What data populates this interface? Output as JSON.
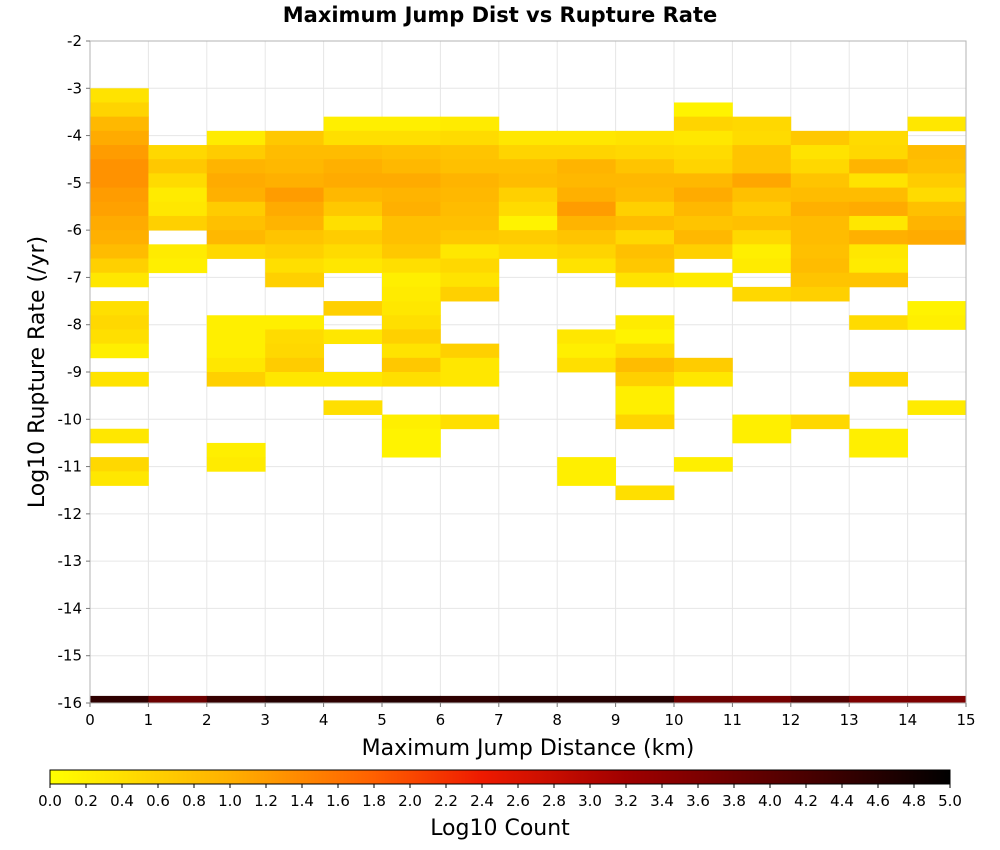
{
  "chart_data": {
    "type": "heatmap",
    "title": "Maximum Jump Dist vs Rupture Rate",
    "xlabel": "Maximum Jump Distance (km)",
    "ylabel": "Log10 Rupture Rate (/yr)",
    "xlim": [
      0,
      15
    ],
    "ylim": [
      -16,
      -2
    ],
    "x_ticks": [
      "0",
      "1",
      "2",
      "3",
      "4",
      "5",
      "6",
      "7",
      "8",
      "9",
      "10",
      "11",
      "12",
      "13",
      "14",
      "15"
    ],
    "y_ticks": [
      "-2",
      "-3",
      "-4",
      "-5",
      "-6",
      "-7",
      "-8",
      "-9",
      "-10",
      "-11",
      "-12",
      "-13",
      "-14",
      "-15",
      "-16"
    ],
    "grid": true,
    "x_bin_width": 1,
    "y_bin_height": 0.3,
    "colorbar": {
      "label": "Log10 Count",
      "min": 0.0,
      "max": 5.0,
      "ticks": [
        "0.0",
        "0.2",
        "0.4",
        "0.6",
        "0.8",
        "1.0",
        "1.2",
        "1.4",
        "1.6",
        "1.8",
        "2.0",
        "2.2",
        "2.4",
        "2.6",
        "2.8",
        "3.0",
        "3.2",
        "3.4",
        "3.6",
        "3.8",
        "4.0",
        "4.2",
        "4.4",
        "4.6",
        "4.8",
        "5.0"
      ],
      "stops": [
        {
          "v": 0.0,
          "color": "#ffff00"
        },
        {
          "v": 1.0,
          "color": "#ffb000"
        },
        {
          "v": 1.8,
          "color": "#ff6000"
        },
        {
          "v": 2.4,
          "color": "#ee1a00"
        },
        {
          "v": 3.2,
          "color": "#a00000"
        },
        {
          "v": 4.2,
          "color": "#4a0000"
        },
        {
          "v": 5.0,
          "color": "#000000"
        }
      ]
    },
    "cells": [
      [
        0,
        -3.0,
        0.35
      ],
      [
        0,
        -3.3,
        0.55
      ],
      [
        0,
        -3.6,
        0.9
      ],
      [
        0,
        -3.9,
        1.05
      ],
      [
        0,
        -4.2,
        1.2
      ],
      [
        0,
        -4.5,
        1.3
      ],
      [
        0,
        -4.8,
        1.3
      ],
      [
        0,
        -5.1,
        1.2
      ],
      [
        0,
        -5.4,
        1.15
      ],
      [
        0,
        -5.7,
        1.05
      ],
      [
        0,
        -6.0,
        1.0
      ],
      [
        0,
        -6.3,
        0.85
      ],
      [
        0,
        -6.6,
        0.6
      ],
      [
        0,
        -6.9,
        0.3
      ],
      [
        0,
        -7.5,
        0.4
      ],
      [
        0,
        -7.8,
        0.5
      ],
      [
        0,
        -8.1,
        0.4
      ],
      [
        0,
        -8.4,
        0.2
      ],
      [
        0,
        -9.0,
        0.35
      ],
      [
        0,
        -10.2,
        0.3
      ],
      [
        0,
        -10.8,
        0.5
      ],
      [
        0,
        -11.1,
        0.3
      ],
      [
        1,
        -4.2,
        0.5
      ],
      [
        1,
        -4.5,
        0.7
      ],
      [
        1,
        -4.8,
        0.45
      ],
      [
        1,
        -5.1,
        0.25
      ],
      [
        1,
        -5.4,
        0.3
      ],
      [
        1,
        -5.7,
        0.6
      ],
      [
        1,
        -6.3,
        0.25
      ],
      [
        1,
        -6.6,
        0.2
      ],
      [
        2,
        -3.9,
        0.25
      ],
      [
        2,
        -4.2,
        0.65
      ],
      [
        2,
        -4.5,
        0.95
      ],
      [
        2,
        -4.8,
        1.05
      ],
      [
        2,
        -5.1,
        1.0
      ],
      [
        2,
        -5.4,
        0.65
      ],
      [
        2,
        -5.7,
        0.8
      ],
      [
        2,
        -6.0,
        0.9
      ],
      [
        2,
        -6.3,
        0.5
      ],
      [
        2,
        -7.8,
        0.2
      ],
      [
        2,
        -8.1,
        0.2
      ],
      [
        2,
        -8.4,
        0.2
      ],
      [
        2,
        -8.7,
        0.3
      ],
      [
        2,
        -9.0,
        0.6
      ],
      [
        2,
        -10.5,
        0.2
      ],
      [
        2,
        -10.8,
        0.25
      ],
      [
        3,
        -3.9,
        0.7
      ],
      [
        3,
        -4.2,
        0.85
      ],
      [
        3,
        -4.5,
        0.9
      ],
      [
        3,
        -4.8,
        1.0
      ],
      [
        3,
        -5.1,
        1.2
      ],
      [
        3,
        -5.4,
        1.05
      ],
      [
        3,
        -5.7,
        0.95
      ],
      [
        3,
        -6.0,
        0.75
      ],
      [
        3,
        -6.3,
        0.6
      ],
      [
        3,
        -6.6,
        0.4
      ],
      [
        3,
        -6.9,
        0.6
      ],
      [
        3,
        -7.8,
        0.2
      ],
      [
        3,
        -8.1,
        0.45
      ],
      [
        3,
        -8.4,
        0.5
      ],
      [
        3,
        -8.7,
        0.65
      ],
      [
        3,
        -9.0,
        0.3
      ],
      [
        4,
        -3.6,
        0.2
      ],
      [
        4,
        -3.9,
        0.4
      ],
      [
        4,
        -4.2,
        0.85
      ],
      [
        4,
        -4.5,
        1.0
      ],
      [
        4,
        -4.8,
        1.05
      ],
      [
        4,
        -5.1,
        0.9
      ],
      [
        4,
        -5.4,
        0.7
      ],
      [
        4,
        -5.7,
        0.4
      ],
      [
        4,
        -6.0,
        0.65
      ],
      [
        4,
        -6.3,
        0.45
      ],
      [
        4,
        -6.6,
        0.3
      ],
      [
        4,
        -7.5,
        0.6
      ],
      [
        4,
        -8.1,
        0.3
      ],
      [
        4,
        -9.0,
        0.3
      ],
      [
        4,
        -9.6,
        0.4
      ],
      [
        5,
        -3.6,
        0.2
      ],
      [
        5,
        -3.9,
        0.4
      ],
      [
        5,
        -4.2,
        0.8
      ],
      [
        5,
        -4.5,
        0.9
      ],
      [
        5,
        -4.8,
        1.05
      ],
      [
        5,
        -5.1,
        0.95
      ],
      [
        5,
        -5.4,
        1.0
      ],
      [
        5,
        -5.7,
        0.8
      ],
      [
        5,
        -6.0,
        0.8
      ],
      [
        5,
        -6.3,
        0.7
      ],
      [
        5,
        -6.6,
        0.4
      ],
      [
        5,
        -6.9,
        0.2
      ],
      [
        5,
        -7.2,
        0.25
      ],
      [
        5,
        -7.5,
        0.3
      ],
      [
        5,
        -7.8,
        0.4
      ],
      [
        5,
        -8.1,
        0.6
      ],
      [
        5,
        -8.4,
        0.35
      ],
      [
        5,
        -8.7,
        0.7
      ],
      [
        5,
        -9.0,
        0.4
      ],
      [
        5,
        -9.9,
        0.2
      ],
      [
        5,
        -10.2,
        0.15
      ],
      [
        5,
        -10.5,
        0.15
      ],
      [
        6,
        -3.6,
        0.25
      ],
      [
        6,
        -3.9,
        0.45
      ],
      [
        6,
        -4.2,
        0.75
      ],
      [
        6,
        -4.5,
        0.8
      ],
      [
        6,
        -4.8,
        0.95
      ],
      [
        6,
        -5.1,
        0.9
      ],
      [
        6,
        -5.4,
        0.85
      ],
      [
        6,
        -5.7,
        0.8
      ],
      [
        6,
        -6.0,
        0.7
      ],
      [
        6,
        -6.3,
        0.3
      ],
      [
        6,
        -6.6,
        0.5
      ],
      [
        6,
        -6.9,
        0.35
      ],
      [
        6,
        -7.2,
        0.6
      ],
      [
        6,
        -8.4,
        0.6
      ],
      [
        6,
        -8.7,
        0.3
      ],
      [
        6,
        -9.0,
        0.3
      ],
      [
        6,
        -9.9,
        0.4
      ],
      [
        7,
        -3.9,
        0.3
      ],
      [
        7,
        -4.2,
        0.55
      ],
      [
        7,
        -4.5,
        0.8
      ],
      [
        7,
        -4.8,
        0.85
      ],
      [
        7,
        -5.1,
        0.6
      ],
      [
        7,
        -5.4,
        0.45
      ],
      [
        7,
        -5.7,
        0.15
      ],
      [
        7,
        -6.0,
        0.65
      ],
      [
        7,
        -6.3,
        0.45
      ],
      [
        8,
        -3.9,
        0.3
      ],
      [
        8,
        -4.2,
        0.55
      ],
      [
        8,
        -4.5,
        0.95
      ],
      [
        8,
        -4.8,
        0.9
      ],
      [
        8,
        -5.1,
        1.0
      ],
      [
        8,
        -5.4,
        1.2
      ],
      [
        8,
        -5.7,
        0.95
      ],
      [
        8,
        -6.0,
        0.75
      ],
      [
        8,
        -6.3,
        0.55
      ],
      [
        8,
        -6.6,
        0.35
      ],
      [
        8,
        -8.1,
        0.3
      ],
      [
        8,
        -8.4,
        0.2
      ],
      [
        8,
        -8.7,
        0.4
      ],
      [
        8,
        -10.8,
        0.2
      ],
      [
        8,
        -11.1,
        0.2
      ],
      [
        9,
        -3.9,
        0.35
      ],
      [
        9,
        -4.2,
        0.5
      ],
      [
        9,
        -4.5,
        0.75
      ],
      [
        9,
        -4.8,
        0.9
      ],
      [
        9,
        -5.1,
        0.85
      ],
      [
        9,
        -5.4,
        0.6
      ],
      [
        9,
        -5.7,
        0.85
      ],
      [
        9,
        -6.0,
        0.5
      ],
      [
        9,
        -6.3,
        0.8
      ],
      [
        9,
        -6.6,
        0.7
      ],
      [
        9,
        -6.9,
        0.35
      ],
      [
        9,
        -7.8,
        0.25
      ],
      [
        9,
        -8.1,
        0.15
      ],
      [
        9,
        -8.4,
        0.45
      ],
      [
        9,
        -8.7,
        0.85
      ],
      [
        9,
        -9.0,
        0.6
      ],
      [
        9,
        -9.3,
        0.2
      ],
      [
        9,
        -9.6,
        0.2
      ],
      [
        9,
        -9.9,
        0.55
      ],
      [
        9,
        -11.4,
        0.4
      ],
      [
        10,
        -3.3,
        0.15
      ],
      [
        10,
        -3.6,
        0.55
      ],
      [
        10,
        -3.9,
        0.3
      ],
      [
        10,
        -4.2,
        0.45
      ],
      [
        10,
        -4.5,
        0.55
      ],
      [
        10,
        -4.8,
        0.9
      ],
      [
        10,
        -5.1,
        1.05
      ],
      [
        10,
        -5.4,
        0.9
      ],
      [
        10,
        -5.7,
        0.75
      ],
      [
        10,
        -6.0,
        0.9
      ],
      [
        10,
        -6.3,
        0.6
      ],
      [
        10,
        -6.9,
        0.25
      ],
      [
        10,
        -8.7,
        0.65
      ],
      [
        10,
        -9.0,
        0.3
      ],
      [
        10,
        -10.8,
        0.2
      ],
      [
        11,
        -3.6,
        0.5
      ],
      [
        11,
        -3.9,
        0.45
      ],
      [
        11,
        -4.2,
        0.75
      ],
      [
        11,
        -4.5,
        0.75
      ],
      [
        11,
        -4.8,
        1.1
      ],
      [
        11,
        -5.1,
        0.8
      ],
      [
        11,
        -5.4,
        0.65
      ],
      [
        11,
        -5.7,
        0.8
      ],
      [
        11,
        -6.0,
        0.5
      ],
      [
        11,
        -6.3,
        0.2
      ],
      [
        11,
        -6.6,
        0.25
      ],
      [
        11,
        -7.2,
        0.5
      ],
      [
        11,
        -9.9,
        0.2
      ],
      [
        11,
        -10.2,
        0.2
      ],
      [
        12,
        -3.9,
        0.7
      ],
      [
        12,
        -4.2,
        0.35
      ],
      [
        12,
        -4.5,
        0.5
      ],
      [
        12,
        -4.8,
        0.75
      ],
      [
        12,
        -5.1,
        0.85
      ],
      [
        12,
        -5.4,
        1.0
      ],
      [
        12,
        -5.7,
        0.85
      ],
      [
        12,
        -6.0,
        0.85
      ],
      [
        12,
        -6.3,
        0.8
      ],
      [
        12,
        -6.6,
        0.85
      ],
      [
        12,
        -6.9,
        0.75
      ],
      [
        12,
        -7.2,
        0.6
      ],
      [
        12,
        -9.9,
        0.5
      ],
      [
        13,
        -3.9,
        0.45
      ],
      [
        13,
        -4.2,
        0.5
      ],
      [
        13,
        -4.5,
        0.95
      ],
      [
        13,
        -4.8,
        0.35
      ],
      [
        13,
        -5.1,
        0.85
      ],
      [
        13,
        -5.4,
        1.05
      ],
      [
        13,
        -5.7,
        0.3
      ],
      [
        13,
        -6.0,
        1.0
      ],
      [
        13,
        -6.3,
        0.3
      ],
      [
        13,
        -6.6,
        0.25
      ],
      [
        13,
        -6.9,
        0.75
      ],
      [
        13,
        -7.8,
        0.45
      ],
      [
        13,
        -9.0,
        0.5
      ],
      [
        13,
        -10.2,
        0.2
      ],
      [
        13,
        -10.5,
        0.2
      ],
      [
        14,
        -3.6,
        0.3
      ],
      [
        14,
        -4.2,
        0.85
      ],
      [
        14,
        -4.5,
        0.8
      ],
      [
        14,
        -4.8,
        0.65
      ],
      [
        14,
        -5.1,
        0.45
      ],
      [
        14,
        -5.4,
        0.8
      ],
      [
        14,
        -5.7,
        0.95
      ],
      [
        14,
        -6.0,
        1.05
      ],
      [
        14,
        -7.5,
        0.15
      ],
      [
        14,
        -7.8,
        0.2
      ],
      [
        14,
        -9.6,
        0.25
      ]
    ],
    "bottom_row": {
      "y": -16,
      "values": [
        4.5,
        3.8,
        4.4,
        4.6,
        4.5,
        4.6,
        4.5,
        4.6,
        4.6,
        4.6,
        3.8,
        3.7,
        4.1,
        3.6,
        3.6
      ]
    }
  }
}
